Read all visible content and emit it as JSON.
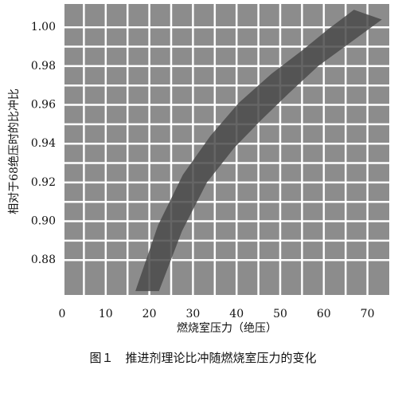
{
  "chart_data": {
    "type": "band",
    "ylabel": "相对于68绝压时的比冲比",
    "xlabel": "燃烧室压力（绝压）",
    "caption": "图１　推进剂理论比冲随燃烧室压力的变化",
    "xlim": [
      0,
      75
    ],
    "ylim": [
      0.862,
      1.012
    ],
    "xticks": [
      0,
      10,
      20,
      30,
      40,
      50,
      60,
      70
    ],
    "yticks": [
      {
        "value": 0.88,
        "label": "0.88"
      },
      {
        "value": 0.9,
        "label": "0.90"
      },
      {
        "value": 0.92,
        "label": "0.92"
      },
      {
        "value": 0.94,
        "label": "0.94"
      },
      {
        "value": 0.96,
        "label": "0.96"
      },
      {
        "value": 0.98,
        "label": "0.98"
      },
      {
        "value": 1.0,
        "label": "1.00"
      }
    ],
    "grid": true,
    "background": "#8c8c8c",
    "color": "#4a4a4a",
    "band": {
      "upper": {
        "x": [
          16.8,
          22,
          27.7,
          34,
          40.5,
          48,
          55,
          61,
          66.9
        ],
        "y": [
          0.864,
          0.898,
          0.924,
          0.944,
          0.961,
          0.976,
          0.988,
          0.999,
          1.009
        ]
      },
      "lower": {
        "x": [
          22.2,
          27.5,
          33.2,
          39.5,
          46,
          52,
          58.7,
          66,
          73.3
        ],
        "y": [
          0.864,
          0.895,
          0.92,
          0.938,
          0.953,
          0.966,
          0.98,
          0.992,
          1.004
        ]
      }
    }
  }
}
